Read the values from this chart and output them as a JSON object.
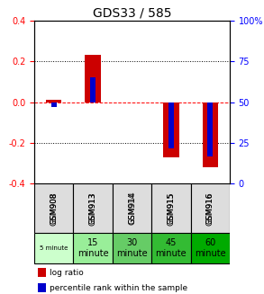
{
  "title": "GDS33 / 585",
  "samples": [
    "GSM908",
    "GSM913",
    "GSM914",
    "GSM915",
    "GSM916"
  ],
  "time_labels": [
    "5 minute",
    "15\nminute",
    "30\nminute",
    "45\nminute",
    "60\nminute"
  ],
  "time_colors": [
    "#ccffcc",
    "#99ee99",
    "#66dd66",
    "#33cc33",
    "#00bb00"
  ],
  "log_ratios": [
    0.01,
    0.23,
    0.0,
    -0.27,
    -0.32
  ],
  "percentile_ranks": [
    0.47,
    0.65,
    0.5,
    0.22,
    0.17
  ],
  "bar_color_red": "#cc0000",
  "bar_color_blue": "#0000cc",
  "ylim": [
    -0.4,
    0.4
  ],
  "yticks_left": [
    -0.4,
    -0.2,
    0.0,
    0.2,
    0.4
  ],
  "yticks_right": [
    0,
    25,
    50,
    75,
    100
  ],
  "grid_color": "#000000",
  "dotted_lines": [
    -0.2,
    0.0,
    0.2
  ],
  "bg_color": "#ffffff",
  "plot_bg": "#ffffff",
  "sample_bg": "#dddddd"
}
